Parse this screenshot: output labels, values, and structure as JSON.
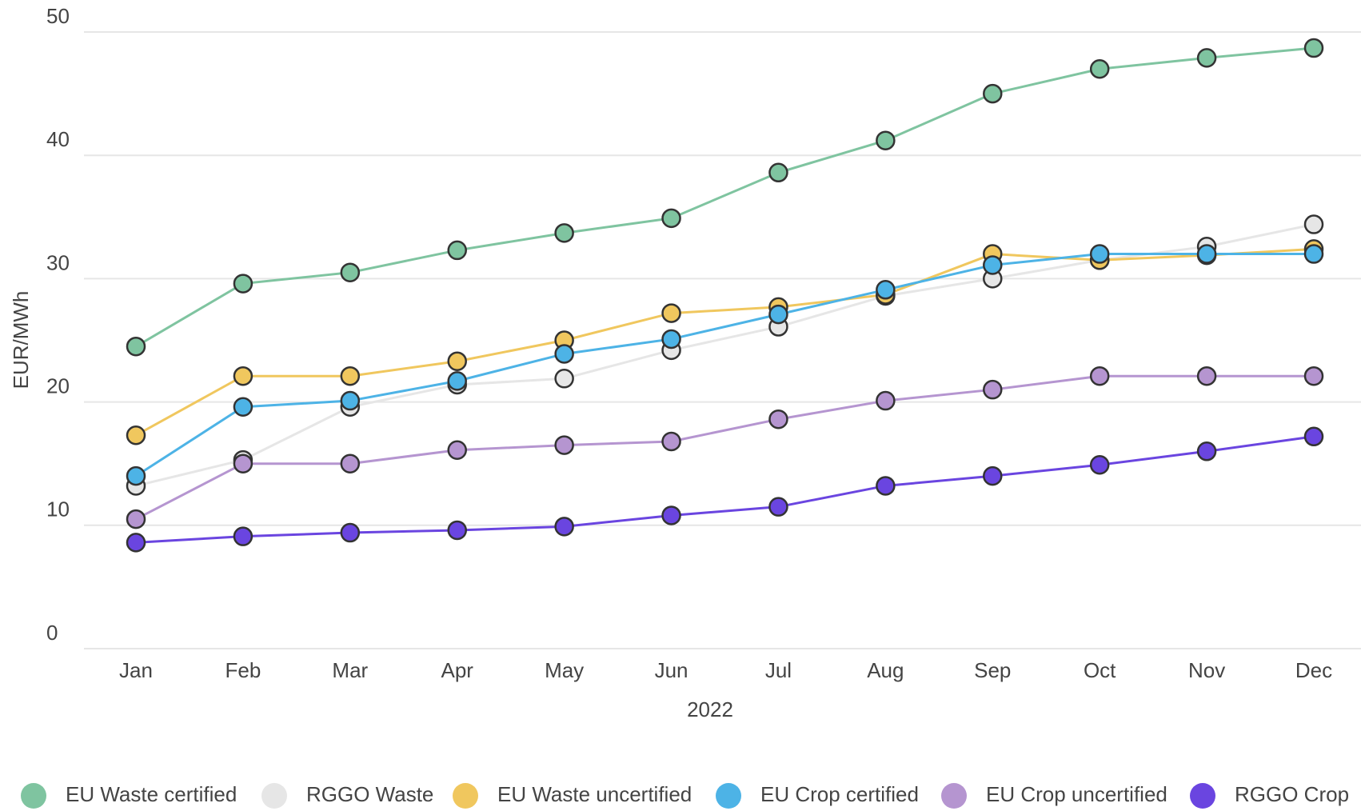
{
  "chart_data": {
    "type": "line",
    "x_axis_label": "2022",
    "y_axis_label": "EUR/MWh",
    "categories": [
      "Jan",
      "Feb",
      "Mar",
      "Apr",
      "May",
      "Jun",
      "Jul",
      "Aug",
      "Sep",
      "Oct",
      "Nov",
      "Dec"
    ],
    "ylim": [
      0,
      50
    ],
    "yticks": [
      0,
      10,
      20,
      30,
      40,
      50
    ],
    "grid": true,
    "legend": "bottom",
    "series": [
      {
        "name": "EU Waste certified",
        "color": "#7fc4a0",
        "values": [
          24.5,
          29.6,
          30.5,
          32.3,
          33.7,
          34.9,
          38.6,
          41.2,
          45,
          47,
          47.9,
          48.7
        ]
      },
      {
        "name": "RGGO Waste",
        "color": "#e6e6e6",
        "values": [
          13.2,
          15.3,
          19.6,
          21.4,
          21.9,
          24.2,
          26.1,
          28.6,
          30,
          31.5,
          32.6,
          34.4
        ]
      },
      {
        "name": "EU Waste uncertified",
        "color": "#f0c75e",
        "values": [
          17.3,
          22.1,
          22.1,
          23.3,
          25,
          27.2,
          27.7,
          28.7,
          32,
          31.5,
          31.9,
          32.4
        ]
      },
      {
        "name": "EU Crop certified",
        "color": "#4db3e6",
        "values": [
          14,
          19.6,
          20.1,
          21.7,
          23.9,
          25.1,
          27.1,
          29.1,
          31.1,
          32,
          32,
          32
        ]
      },
      {
        "name": "EU Crop uncertified",
        "color": "#b595d0",
        "values": [
          10.5,
          15,
          15,
          16.1,
          16.5,
          16.8,
          18.6,
          20.1,
          21,
          22.1,
          22.1,
          22.1
        ]
      },
      {
        "name": "RGGO Crop",
        "color": "#6a45e0",
        "values": [
          8.6,
          9.1,
          9.4,
          9.6,
          9.9,
          10.8,
          11.5,
          13.2,
          14,
          14.9,
          16,
          17.2
        ]
      }
    ]
  }
}
